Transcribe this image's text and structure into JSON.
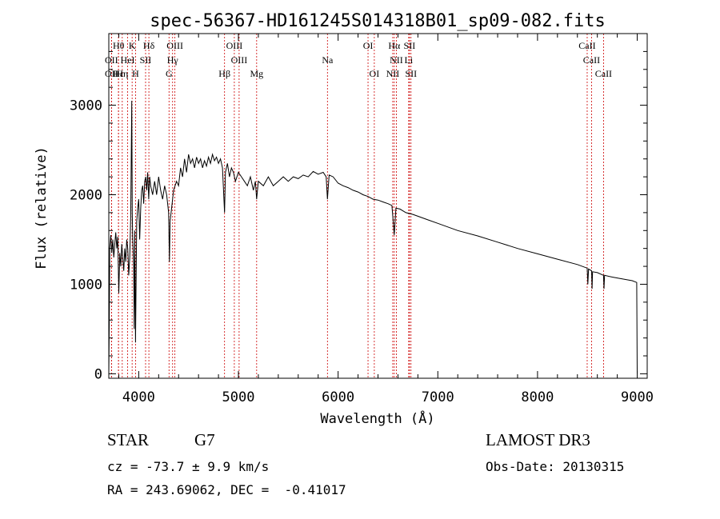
{
  "chart_data": {
    "type": "line",
    "title": "spec-56367-HD161245S014318B01_sp09-082.fits",
    "xlabel": "Wavelength (Å)",
    "ylabel": "Flux (relative)",
    "xlim": [
      3700,
      9100
    ],
    "ylim": [
      -50,
      3800
    ],
    "x_ticks": [
      4000,
      5000,
      6000,
      7000,
      8000,
      9000
    ],
    "y_ticks": [
      0,
      1000,
      2000,
      3000
    ],
    "grid": false,
    "series": [
      {
        "name": "flux",
        "points": [
          [
            3700,
            0
          ],
          [
            3705,
            620
          ],
          [
            3710,
            1400
          ],
          [
            3720,
            1550
          ],
          [
            3730,
            1350
          ],
          [
            3740,
            1500
          ],
          [
            3750,
            1300
          ],
          [
            3760,
            1450
          ],
          [
            3770,
            1580
          ],
          [
            3780,
            1400
          ],
          [
            3790,
            1530
          ],
          [
            3800,
            900
          ],
          [
            3810,
            1350
          ],
          [
            3820,
            1200
          ],
          [
            3830,
            1450
          ],
          [
            3840,
            1300
          ],
          [
            3850,
            1150
          ],
          [
            3860,
            1400
          ],
          [
            3870,
            1250
          ],
          [
            3880,
            1500
          ],
          [
            3890,
            1400
          ],
          [
            3900,
            1100
          ],
          [
            3910,
            1300
          ],
          [
            3920,
            1750
          ],
          [
            3930,
            3050
          ],
          [
            3935,
            1800
          ],
          [
            3940,
            1500
          ],
          [
            3950,
            1200
          ],
          [
            3955,
            500
          ],
          [
            3960,
            1600
          ],
          [
            3968,
            350
          ],
          [
            3975,
            1200
          ],
          [
            3980,
            1700
          ],
          [
            3990,
            1850
          ],
          [
            4000,
            1950
          ],
          [
            4010,
            1500
          ],
          [
            4020,
            1850
          ],
          [
            4030,
            2050
          ],
          [
            4040,
            2100
          ],
          [
            4050,
            1900
          ],
          [
            4060,
            2150
          ],
          [
            4070,
            2200
          ],
          [
            4080,
            2050
          ],
          [
            4090,
            2250
          ],
          [
            4100,
            1950
          ],
          [
            4110,
            2200
          ],
          [
            4120,
            2100
          ],
          [
            4140,
            2000
          ],
          [
            4160,
            2150
          ],
          [
            4180,
            2000
          ],
          [
            4200,
            2200
          ],
          [
            4220,
            2050
          ],
          [
            4240,
            1950
          ],
          [
            4260,
            2100
          ],
          [
            4280,
            2000
          ],
          [
            4300,
            1800
          ],
          [
            4308,
            1250
          ],
          [
            4315,
            1700
          ],
          [
            4330,
            1850
          ],
          [
            4350,
            2050
          ],
          [
            4380,
            2150
          ],
          [
            4400,
            2100
          ],
          [
            4420,
            2300
          ],
          [
            4440,
            2200
          ],
          [
            4460,
            2400
          ],
          [
            4480,
            2250
          ],
          [
            4500,
            2450
          ],
          [
            4520,
            2350
          ],
          [
            4540,
            2400
          ],
          [
            4560,
            2300
          ],
          [
            4580,
            2420
          ],
          [
            4600,
            2350
          ],
          [
            4620,
            2400
          ],
          [
            4640,
            2300
          ],
          [
            4660,
            2380
          ],
          [
            4680,
            2320
          ],
          [
            4700,
            2420
          ],
          [
            4720,
            2350
          ],
          [
            4740,
            2450
          ],
          [
            4760,
            2380
          ],
          [
            4780,
            2420
          ],
          [
            4800,
            2350
          ],
          [
            4820,
            2400
          ],
          [
            4840,
            2300
          ],
          [
            4861,
            1800
          ],
          [
            4870,
            2250
          ],
          [
            4890,
            2350
          ],
          [
            4910,
            2200
          ],
          [
            4930,
            2300
          ],
          [
            4950,
            2250
          ],
          [
            4970,
            2150
          ],
          [
            5000,
            2250
          ],
          [
            5030,
            2200
          ],
          [
            5060,
            2150
          ],
          [
            5090,
            2100
          ],
          [
            5120,
            2200
          ],
          [
            5150,
            2050
          ],
          [
            5170,
            2150
          ],
          [
            5183,
            1950
          ],
          [
            5200,
            2150
          ],
          [
            5250,
            2100
          ],
          [
            5300,
            2200
          ],
          [
            5350,
            2100
          ],
          [
            5400,
            2150
          ],
          [
            5450,
            2200
          ],
          [
            5500,
            2150
          ],
          [
            5550,
            2200
          ],
          [
            5600,
            2180
          ],
          [
            5650,
            2220
          ],
          [
            5700,
            2200
          ],
          [
            5750,
            2260
          ],
          [
            5800,
            2230
          ],
          [
            5850,
            2250
          ],
          [
            5880,
            2200
          ],
          [
            5893,
            1950
          ],
          [
            5910,
            2220
          ],
          [
            5950,
            2200
          ],
          [
            6000,
            2130
          ],
          [
            6050,
            2100
          ],
          [
            6100,
            2080
          ],
          [
            6150,
            2050
          ],
          [
            6200,
            2030
          ],
          [
            6250,
            2000
          ],
          [
            6300,
            1980
          ],
          [
            6350,
            1950
          ],
          [
            6400,
            1940
          ],
          [
            6450,
            1920
          ],
          [
            6500,
            1900
          ],
          [
            6540,
            1880
          ],
          [
            6563,
            1550
          ],
          [
            6580,
            1850
          ],
          [
            6620,
            1840
          ],
          [
            6680,
            1800
          ],
          [
            6750,
            1780
          ],
          [
            6800,
            1760
          ],
          [
            6900,
            1720
          ],
          [
            7000,
            1680
          ],
          [
            7200,
            1600
          ],
          [
            7400,
            1540
          ],
          [
            7600,
            1470
          ],
          [
            7800,
            1400
          ],
          [
            8000,
            1340
          ],
          [
            8200,
            1280
          ],
          [
            8400,
            1220
          ],
          [
            8498,
            1180
          ],
          [
            8505,
            1000
          ],
          [
            8512,
            1170
          ],
          [
            8542,
            1150
          ],
          [
            8547,
            950
          ],
          [
            8552,
            1140
          ],
          [
            8600,
            1130
          ],
          [
            8662,
            1100
          ],
          [
            8667,
            950
          ],
          [
            8672,
            1100
          ],
          [
            8750,
            1080
          ],
          [
            8850,
            1060
          ],
          [
            8950,
            1040
          ],
          [
            8995,
            1020
          ],
          [
            9000,
            0
          ]
        ]
      }
    ],
    "lines": [
      {
        "label": "Hθ",
        "x": 3798,
        "row": 1
      },
      {
        "label": "K",
        "x": 3934,
        "row": 1
      },
      {
        "label": "Hδ",
        "x": 4102,
        "row": 1
      },
      {
        "label": "OIII",
        "x": 4363,
        "row": 1
      },
      {
        "label": "OIII",
        "x": 4959,
        "row": 1
      },
      {
        "label": "OI",
        "x": 6300,
        "row": 1
      },
      {
        "label": "Hα",
        "x": 6563,
        "row": 1
      },
      {
        "label": "SII",
        "x": 6716,
        "row": 1
      },
      {
        "label": "CaII",
        "x": 8498,
        "row": 1
      },
      {
        "label": "OII",
        "x": 3727,
        "row": 2
      },
      {
        "label": "HeI",
        "x": 3889,
        "row": 2
      },
      {
        "label": "SII",
        "x": 4069,
        "row": 2
      },
      {
        "label": "Hγ",
        "x": 4340,
        "row": 2
      },
      {
        "label": "OIII",
        "x": 5007,
        "row": 2
      },
      {
        "label": "Na",
        "x": 5893,
        "row": 2
      },
      {
        "label": "NII",
        "x": 6584,
        "row": 2
      },
      {
        "label": "Li",
        "x": 6708,
        "row": 2
      },
      {
        "label": "CaII",
        "x": 8542,
        "row": 2
      },
      {
        "label": "OII",
        "x": 3727,
        "row": 3
      },
      {
        "label": "Hε",
        "x": 3797,
        "row": 3
      },
      {
        "label": "Hη",
        "x": 3835,
        "row": 3
      },
      {
        "label": "H",
        "x": 3968,
        "row": 3
      },
      {
        "label": "G",
        "x": 4304,
        "row": 3
      },
      {
        "label": "Hβ",
        "x": 4861,
        "row": 3
      },
      {
        "label": "Mg",
        "x": 5183,
        "row": 3
      },
      {
        "label": "OI",
        "x": 6363,
        "row": 3
      },
      {
        "label": "NII",
        "x": 6548,
        "row": 3
      },
      {
        "label": "SII",
        "x": 6731,
        "row": 3
      },
      {
        "label": "CaII",
        "x": 8662,
        "row": 3
      }
    ]
  },
  "info": {
    "object_class": "STAR",
    "subclass": "G7",
    "survey": "LAMOST DR3",
    "cz": "cz = -73.7 ± 9.9 km/s",
    "obs_date": "Obs-Date: 20130315",
    "coords": "RA = 243.69062, DEC =  -0.41017"
  },
  "colors": {
    "line": "#cc0000",
    "axis": "#000000",
    "background": "#ffffff"
  }
}
